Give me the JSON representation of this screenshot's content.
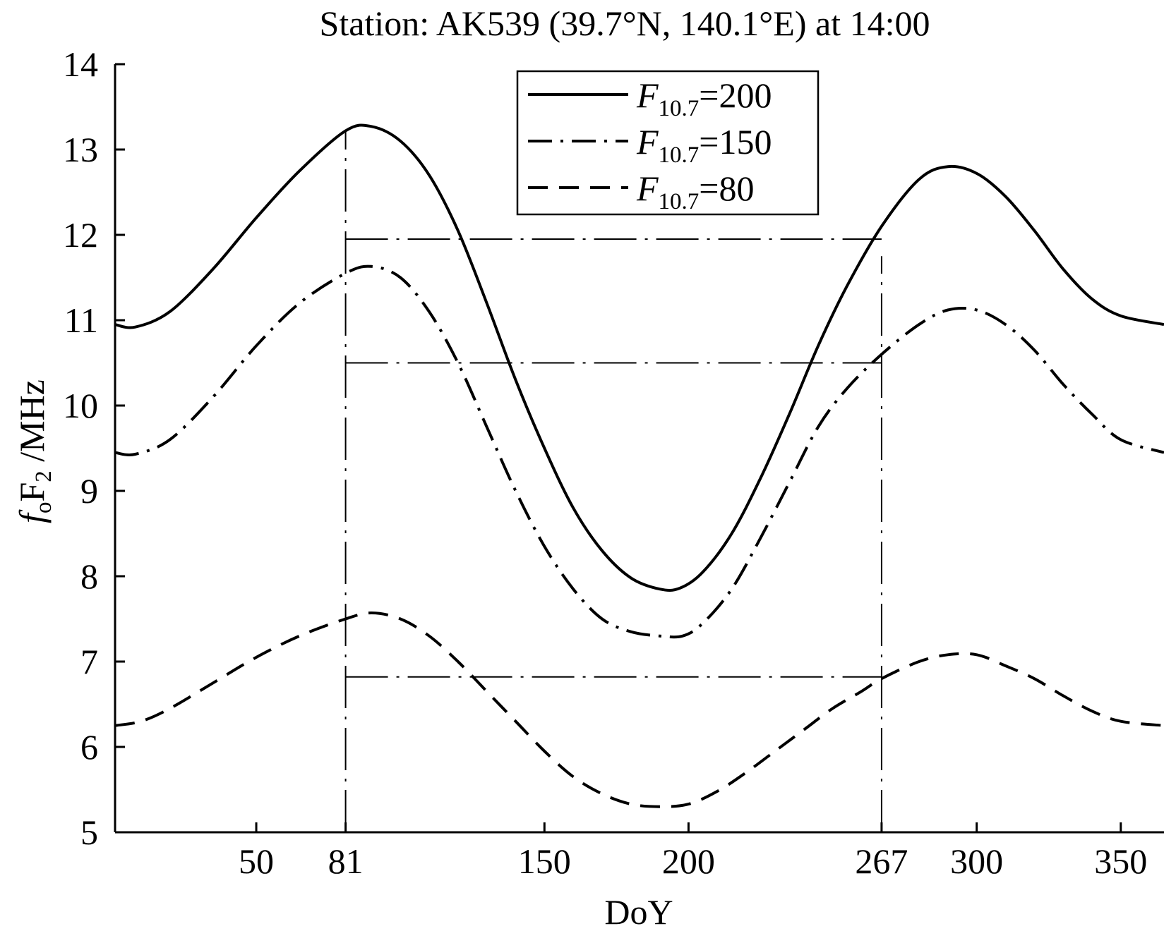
{
  "chart_data": {
    "type": "line",
    "title": "Station: AK539 (39.7°N, 140.1°E) at 14:00",
    "xlabel": "DoY",
    "ylabel": {
      "f": "f",
      "sub_o": "o",
      "F": "F",
      "sub_2": "2",
      "unit": " /MHz"
    },
    "xlim": [
      1,
      365
    ],
    "ylim": [
      5,
      14
    ],
    "xticks": [
      50,
      81,
      150,
      200,
      267,
      300,
      350
    ],
    "yticks": [
      5,
      6,
      7,
      8,
      9,
      10,
      11,
      12,
      13,
      14
    ],
    "legend_position": "top-right",
    "series": [
      {
        "name": "=200",
        "legend_prefix": "F",
        "legend_sub": "10.7",
        "style": "solid",
        "x": [
          1,
          8,
          20,
          35,
          50,
          65,
          81,
          90,
          100,
          110,
          120,
          130,
          140,
          150,
          160,
          170,
          180,
          190,
          197,
          205,
          215,
          225,
          235,
          245,
          255,
          267,
          280,
          290,
          300,
          310,
          320,
          330,
          340,
          350,
          365
        ],
        "y": [
          10.95,
          10.92,
          11.1,
          11.6,
          12.2,
          12.75,
          13.22,
          13.27,
          13.1,
          12.7,
          12.05,
          11.2,
          10.3,
          9.5,
          8.8,
          8.3,
          7.98,
          7.85,
          7.86,
          8.05,
          8.5,
          9.15,
          9.9,
          10.7,
          11.4,
          12.1,
          12.65,
          12.8,
          12.72,
          12.45,
          12.05,
          11.6,
          11.25,
          11.05,
          10.95
        ]
      },
      {
        "name": "=150",
        "legend_prefix": "F",
        "legend_sub": "10.7",
        "style": "dashdot",
        "x": [
          1,
          8,
          20,
          35,
          50,
          65,
          81,
          90,
          100,
          110,
          120,
          130,
          140,
          150,
          160,
          170,
          180,
          190,
          198,
          205,
          215,
          225,
          235,
          245,
          255,
          267,
          280,
          290,
          300,
          310,
          320,
          330,
          340,
          350,
          365
        ],
        "y": [
          9.45,
          9.43,
          9.6,
          10.1,
          10.7,
          11.2,
          11.55,
          11.63,
          11.5,
          11.1,
          10.5,
          9.75,
          9.0,
          8.35,
          7.85,
          7.5,
          7.35,
          7.3,
          7.3,
          7.45,
          7.85,
          8.45,
          9.1,
          9.75,
          10.2,
          10.6,
          10.95,
          11.12,
          11.12,
          10.95,
          10.65,
          10.25,
          9.9,
          9.6,
          9.45
        ]
      },
      {
        "name": "=80",
        "legend_prefix": "F",
        "legend_sub": "10.7",
        "style": "dashed",
        "x": [
          1,
          10,
          20,
          35,
          50,
          65,
          81,
          90,
          100,
          110,
          120,
          130,
          140,
          150,
          160,
          170,
          180,
          190,
          200,
          210,
          220,
          230,
          240,
          250,
          260,
          267,
          280,
          290,
          300,
          310,
          320,
          330,
          340,
          350,
          365
        ],
        "y": [
          6.25,
          6.3,
          6.45,
          6.75,
          7.05,
          7.3,
          7.5,
          7.57,
          7.5,
          7.3,
          7.0,
          6.65,
          6.3,
          5.95,
          5.65,
          5.45,
          5.33,
          5.3,
          5.33,
          5.48,
          5.7,
          5.95,
          6.2,
          6.45,
          6.65,
          6.8,
          7.0,
          7.08,
          7.08,
          6.95,
          6.8,
          6.6,
          6.42,
          6.3,
          6.25
        ]
      }
    ],
    "reference_lines": {
      "vertical": [
        {
          "x": 81,
          "y_from": 5,
          "y_to": 13.22
        },
        {
          "x": 267,
          "y_from": 5,
          "y_to": 11.75
        }
      ],
      "horizontal": [
        {
          "y": 11.95,
          "x_from": 81,
          "x_to": 267
        },
        {
          "y": 10.5,
          "x_from": 81,
          "x_to": 267
        },
        {
          "y": 6.82,
          "x_from": 81,
          "x_to": 267
        }
      ]
    }
  }
}
